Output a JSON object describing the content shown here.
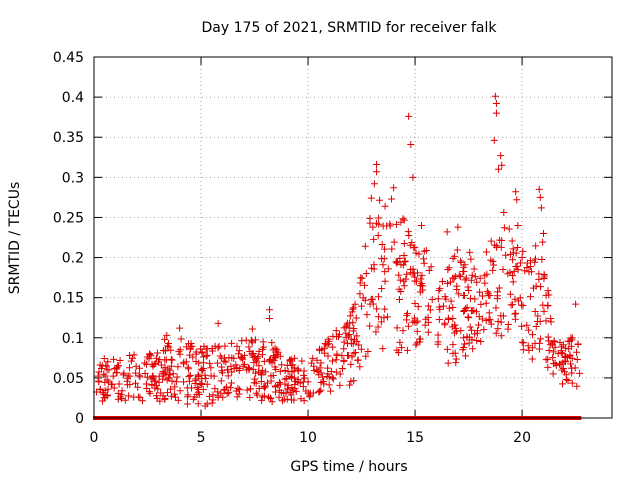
{
  "chart_data": {
    "type": "scatter",
    "title": "Day 175 of 2021, SRMTID for receiver falk",
    "xlabel": "GPS time / hours",
    "ylabel": "SRMTID / TECUs",
    "xlim": [
      0,
      24.2
    ],
    "ylim": [
      0,
      0.45
    ],
    "x_ticks": [
      0,
      5,
      10,
      15,
      20
    ],
    "x_tick_labels": [
      "0",
      "5",
      "10",
      "15",
      "20"
    ],
    "y_ticks": [
      0,
      0.05,
      0.1,
      0.15,
      0.2,
      0.25,
      0.3,
      0.35,
      0.4,
      0.45
    ],
    "y_tick_labels": [
      "0",
      "0.05",
      "0.1",
      "0.15",
      "0.2",
      "0.25",
      "0.3",
      "0.35",
      "0.4",
      "0.45"
    ],
    "grid": true,
    "marker": "+",
    "color": "#e00000",
    "zero_marker": "square",
    "generation": {
      "seed": 175,
      "x_start": 0.05,
      "x_end": 22.7,
      "dx": 0.03,
      "baseline_count": 1000,
      "zero_gaps": [
        [
          9.6,
          10.4
        ],
        [
          15.7,
          16.0
        ]
      ]
    },
    "series": [
      {
        "name": "SRMTID",
        "envelope": [
          {
            "x": 0.0,
            "lo": 0.02,
            "hi": 0.07
          },
          {
            "x": 1.0,
            "lo": 0.02,
            "hi": 0.08
          },
          {
            "x": 2.0,
            "lo": 0.02,
            "hi": 0.08
          },
          {
            "x": 3.0,
            "lo": 0.02,
            "hi": 0.09
          },
          {
            "x": 4.0,
            "lo": 0.02,
            "hi": 0.1
          },
          {
            "x": 5.0,
            "lo": 0.01,
            "hi": 0.09
          },
          {
            "x": 6.0,
            "lo": 0.02,
            "hi": 0.09
          },
          {
            "x": 7.0,
            "lo": 0.02,
            "hi": 0.1
          },
          {
            "x": 8.0,
            "lo": 0.02,
            "hi": 0.1
          },
          {
            "x": 9.0,
            "lo": 0.02,
            "hi": 0.08
          },
          {
            "x": 10.0,
            "lo": 0.02,
            "hi": 0.07
          },
          {
            "x": 11.0,
            "lo": 0.03,
            "hi": 0.1
          },
          {
            "x": 12.0,
            "lo": 0.04,
            "hi": 0.13
          },
          {
            "x": 12.5,
            "lo": 0.06,
            "hi": 0.18
          },
          {
            "x": 13.0,
            "lo": 0.08,
            "hi": 0.3
          },
          {
            "x": 13.5,
            "lo": 0.08,
            "hi": 0.26
          },
          {
            "x": 14.0,
            "lo": 0.07,
            "hi": 0.25
          },
          {
            "x": 14.5,
            "lo": 0.08,
            "hi": 0.25
          },
          {
            "x": 15.0,
            "lo": 0.08,
            "hi": 0.22
          },
          {
            "x": 15.5,
            "lo": 0.09,
            "hi": 0.21
          },
          {
            "x": 16.0,
            "lo": 0.07,
            "hi": 0.19
          },
          {
            "x": 16.5,
            "lo": 0.06,
            "hi": 0.2
          },
          {
            "x": 17.0,
            "lo": 0.06,
            "hi": 0.21
          },
          {
            "x": 17.5,
            "lo": 0.08,
            "hi": 0.21
          },
          {
            "x": 18.0,
            "lo": 0.09,
            "hi": 0.2
          },
          {
            "x": 18.5,
            "lo": 0.11,
            "hi": 0.22
          },
          {
            "x": 19.0,
            "lo": 0.1,
            "hi": 0.28
          },
          {
            "x": 19.5,
            "lo": 0.1,
            "hi": 0.23
          },
          {
            "x": 20.0,
            "lo": 0.08,
            "hi": 0.22
          },
          {
            "x": 20.5,
            "lo": 0.06,
            "hi": 0.22
          },
          {
            "x": 21.0,
            "lo": 0.06,
            "hi": 0.22
          },
          {
            "x": 21.5,
            "lo": 0.04,
            "hi": 0.1
          },
          {
            "x": 22.0,
            "lo": 0.04,
            "hi": 0.09
          },
          {
            "x": 22.5,
            "lo": 0.04,
            "hi": 0.11
          },
          {
            "x": 23.0,
            "lo": 0.03,
            "hi": 0.05
          }
        ],
        "highlights": [
          {
            "x": 14.7,
            "y": 0.376
          },
          {
            "x": 14.8,
            "y": 0.341
          },
          {
            "x": 18.75,
            "y": 0.401
          },
          {
            "x": 18.8,
            "y": 0.392
          },
          {
            "x": 18.8,
            "y": 0.38
          },
          {
            "x": 18.7,
            "y": 0.346
          },
          {
            "x": 19.0,
            "y": 0.327
          },
          {
            "x": 19.05,
            "y": 0.315
          },
          {
            "x": 13.2,
            "y": 0.316
          },
          {
            "x": 13.2,
            "y": 0.307
          },
          {
            "x": 13.1,
            "y": 0.292
          },
          {
            "x": 14.0,
            "y": 0.287
          },
          {
            "x": 13.9,
            "y": 0.273
          },
          {
            "x": 14.9,
            "y": 0.3
          },
          {
            "x": 19.7,
            "y": 0.282
          },
          {
            "x": 19.75,
            "y": 0.272
          },
          {
            "x": 20.8,
            "y": 0.285
          },
          {
            "x": 20.85,
            "y": 0.275
          },
          {
            "x": 20.9,
            "y": 0.262
          },
          {
            "x": 18.9,
            "y": 0.31
          },
          {
            "x": 13.6,
            "y": 0.264
          },
          {
            "x": 15.3,
            "y": 0.24
          },
          {
            "x": 17.0,
            "y": 0.238
          },
          {
            "x": 16.5,
            "y": 0.232
          },
          {
            "x": 19.8,
            "y": 0.24
          },
          {
            "x": 21.0,
            "y": 0.23
          },
          {
            "x": 20.0,
            "y": 0.2
          },
          {
            "x": 22.5,
            "y": 0.142
          },
          {
            "x": 8.2,
            "y": 0.135
          },
          {
            "x": 8.2,
            "y": 0.124
          },
          {
            "x": 7.4,
            "y": 0.111
          },
          {
            "x": 5.8,
            "y": 0.118
          },
          {
            "x": 4.0,
            "y": 0.112
          },
          {
            "x": 3.4,
            "y": 0.103
          },
          {
            "x": 3.3,
            "y": 0.098
          }
        ]
      }
    ]
  }
}
